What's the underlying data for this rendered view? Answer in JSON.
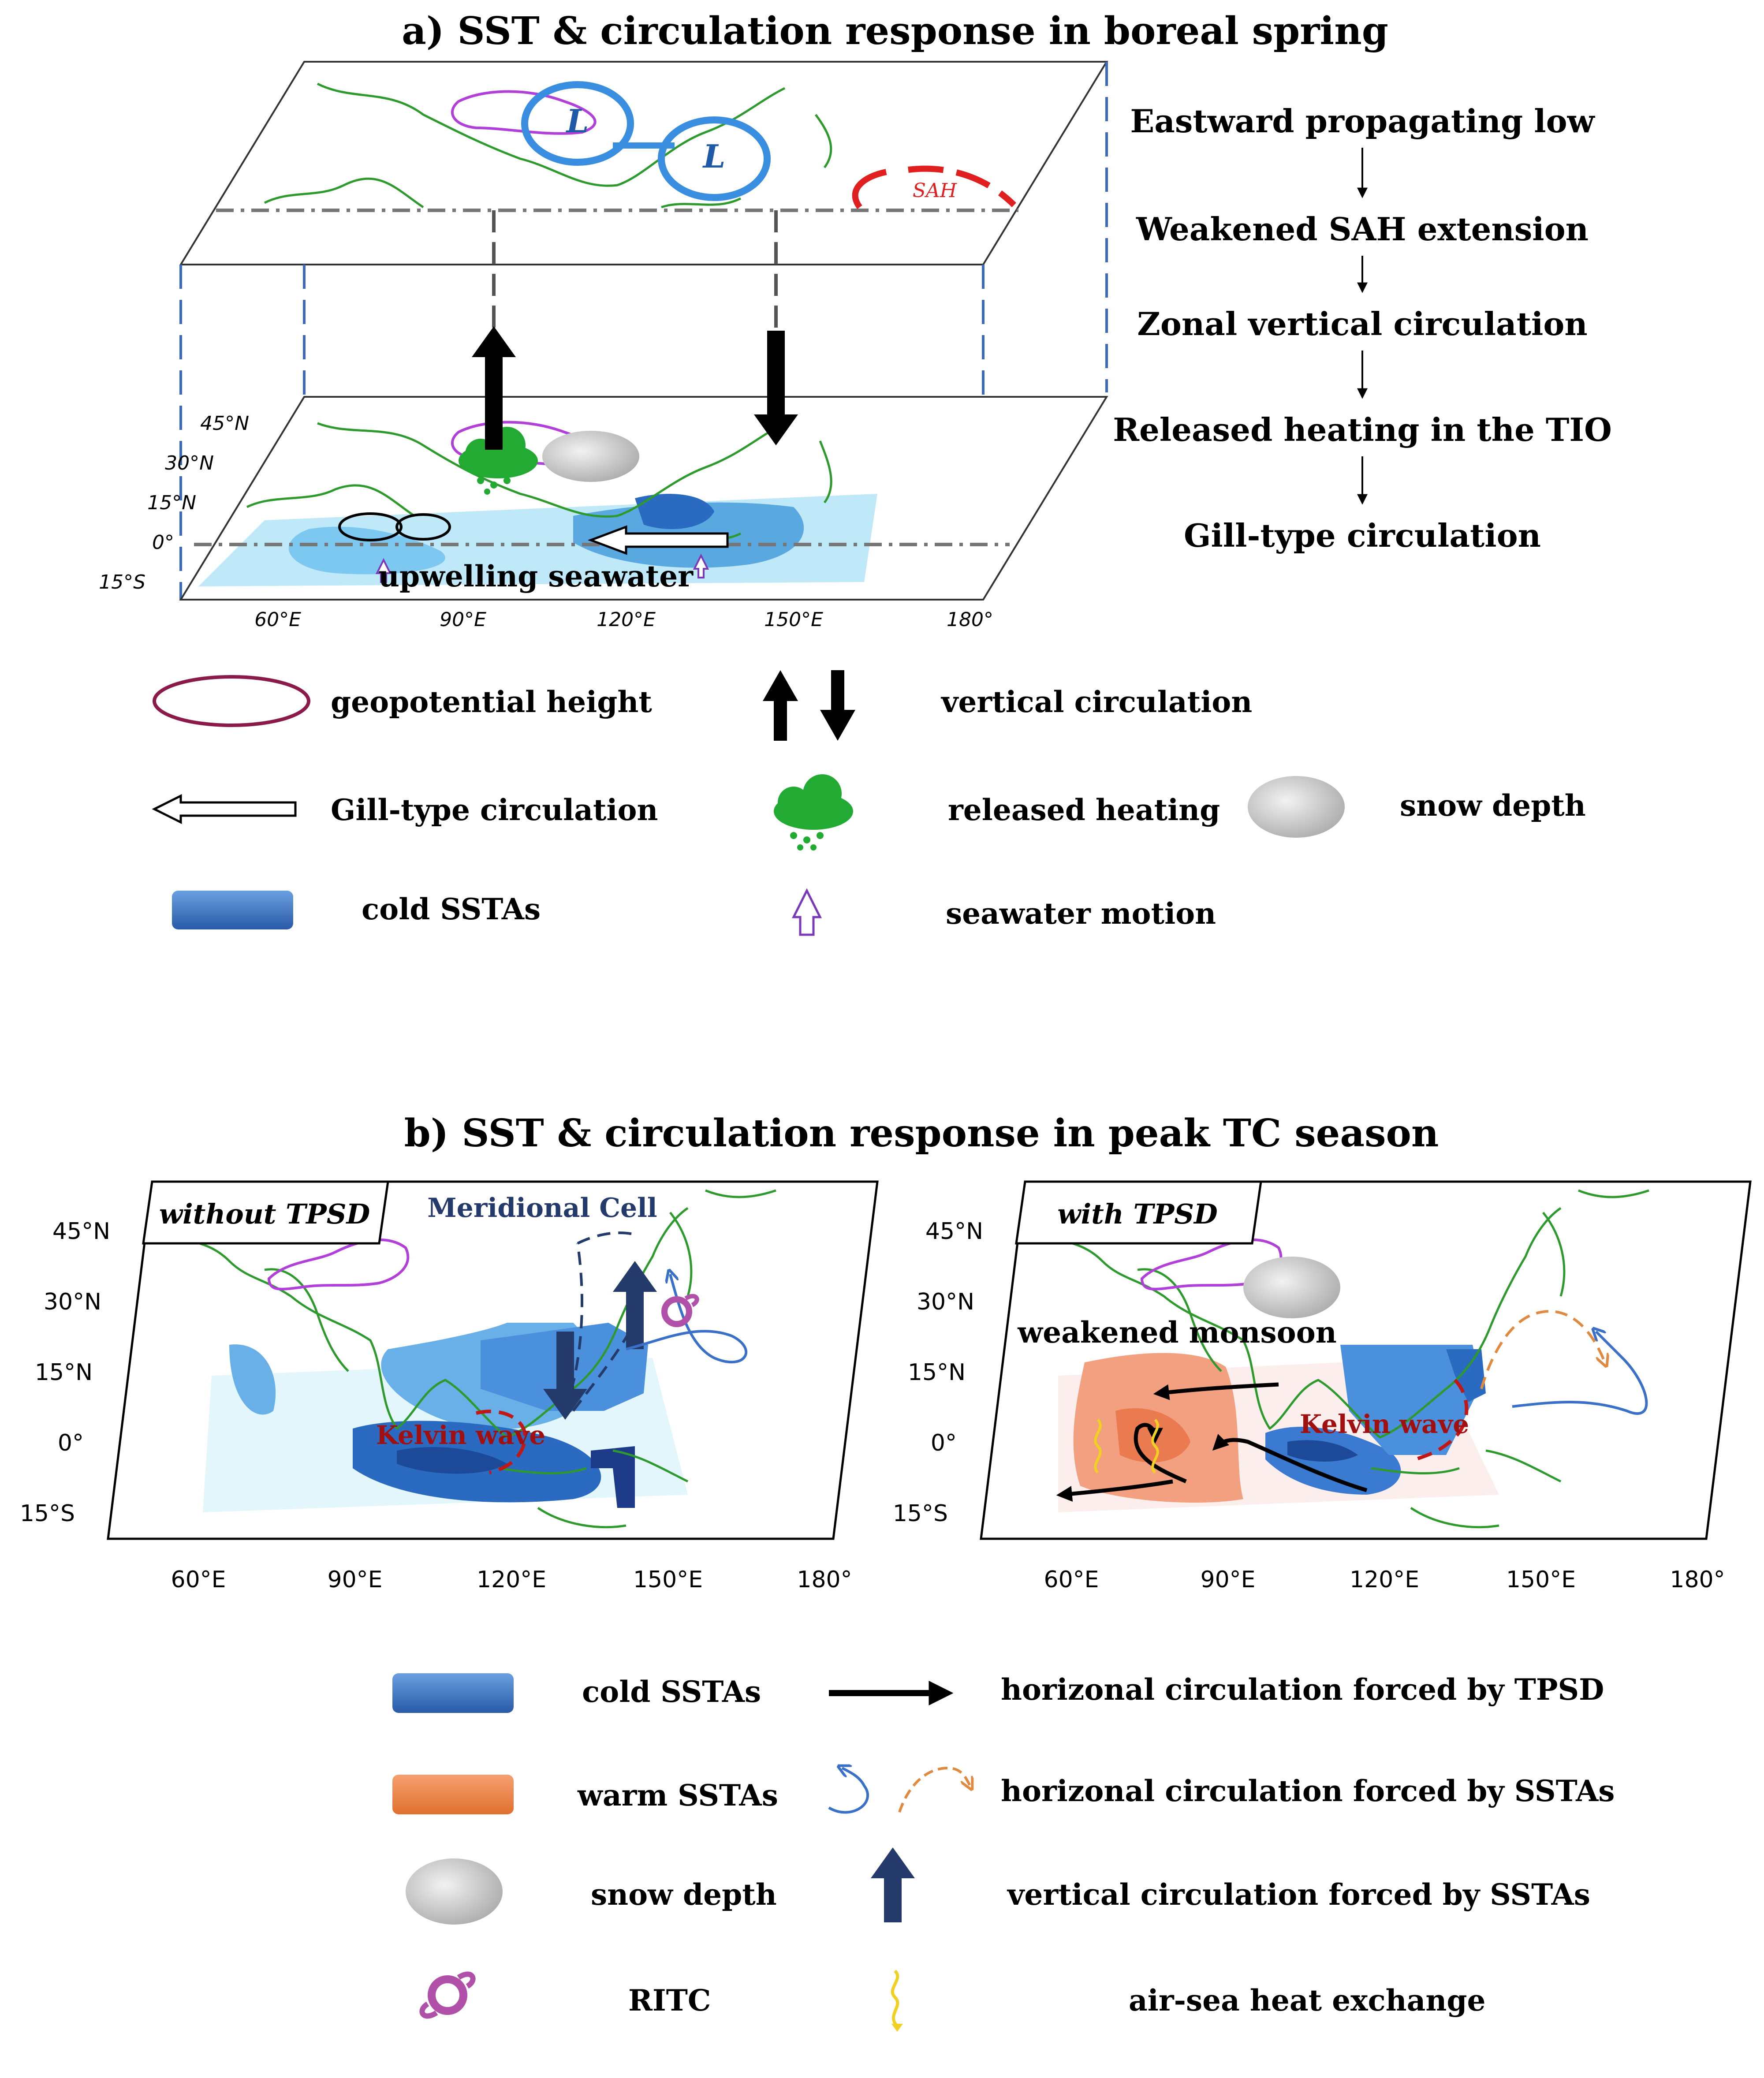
{
  "panel_a": {
    "title": "a) SST & circulation response in boreal spring",
    "upper_labels": {
      "low": "L",
      "sah": "SAH"
    },
    "map_annotation": "upwelling seawater",
    "lat_ticks": [
      "45°N",
      "30°N",
      "15°N",
      "0°",
      "15°S"
    ],
    "lon_ticks": [
      "60°E",
      "90°E",
      "120°E",
      "150°E",
      "180°"
    ],
    "flow_steps": [
      "Eastward propagating low",
      "Weakened SAH extension",
      "Zonal vertical circulation",
      "Released heating in the TIO",
      "Gill-type circulation"
    ],
    "legend": {
      "geopotential_height": "geopotential height",
      "vertical_circulation": "vertical circulation",
      "gill": "Gill-type circulation",
      "released_heating": "released heating",
      "snow_depth": "snow depth",
      "cold_sstas": "cold SSTAs",
      "seawater_motion": "seawater motion"
    }
  },
  "panel_b": {
    "title": "b) SST & circulation response in peak TC season",
    "left_map": {
      "label": "without TPSD",
      "meridional": "Meridional Cell",
      "kelvin": "Kelvin wave"
    },
    "right_map": {
      "label": "with TPSD",
      "monsoon": "weakened monsoon",
      "kelvin": "Kelvin wave"
    },
    "lat_ticks": [
      "45°N",
      "30°N",
      "15°N",
      "0°",
      "15°S"
    ],
    "lon_ticks": [
      "60°E",
      "90°E",
      "120°E",
      "150°E",
      "180°"
    ],
    "legend": {
      "cold_sstas": "cold SSTAs",
      "warm_sstas": "warm SSTAs",
      "snow_depth": "snow depth",
      "ritc": "RITC",
      "tpsd_circ": "horizonal circulation forced by TPSD",
      "ssta_circ": "horizonal circulation forced by SSTAs",
      "vert_circ": "vertical circulation forced by SSTAs",
      "heat_exchange": "air-sea heat exchange"
    }
  },
  "colors": {
    "cold_light": "#bfe8f8",
    "cold_mid": "#5aa8e0",
    "cold_dark": "#1c5aa8",
    "warm": "#f08a5c",
    "coast": "#2e9a2e",
    "plateau": "#b040d8",
    "navy": "#243a6b",
    "low_circle": "#3a8ee0",
    "sah_arc": "#e02020",
    "rain": "#22aa33",
    "ritc": "#b050a8",
    "yellow": "#f0d020"
  }
}
